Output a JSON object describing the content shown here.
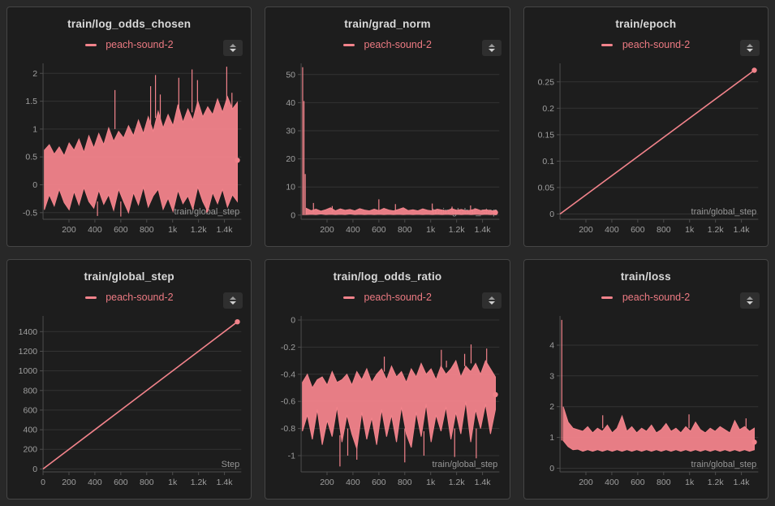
{
  "app": {
    "background": "#282828",
    "panel_bg": "#1d1d1d",
    "panel_border": "#454545",
    "accent": "#f2838b",
    "legend_color": "#ec7a82",
    "title_color": "#d9d9d9",
    "tick_color": "#9f9f9f",
    "grid_color": "#333333",
    "axis_color": "#4d4d4d",
    "stepper_icon": "up-down-arrows"
  },
  "chart_data": [
    {
      "type": "line",
      "title": "train/log_odds_chosen",
      "legend": "peach-sound-2",
      "xlabel": "train/global_step",
      "x_range": [
        0,
        1530
      ],
      "ylim": [
        -0.62,
        2.18
      ],
      "xticks": [
        [
          200,
          "200"
        ],
        [
          400,
          "400"
        ],
        [
          600,
          "600"
        ],
        [
          800,
          "800"
        ],
        [
          1000,
          "1k"
        ],
        [
          1200,
          "1.2k"
        ],
        [
          1400,
          "1.4k"
        ]
      ],
      "yticks": [
        [
          -0.5,
          "-0.5"
        ],
        [
          0,
          "0"
        ],
        [
          0.5,
          "0.5"
        ],
        [
          1,
          "1"
        ],
        [
          1.5,
          "1.5"
        ],
        [
          2,
          "2"
        ]
      ],
      "band": {
        "x0": 10,
        "x1": 1500,
        "lo_hi": [
          [
            -0.45,
            0.62
          ],
          [
            -0.18,
            0.72
          ],
          [
            -0.38,
            0.55
          ],
          [
            -0.08,
            0.68
          ],
          [
            -0.32,
            0.52
          ],
          [
            -0.45,
            0.75
          ],
          [
            -0.12,
            0.62
          ],
          [
            -0.36,
            0.82
          ],
          [
            -0.05,
            0.58
          ],
          [
            -0.3,
            0.88
          ],
          [
            -0.42,
            0.66
          ],
          [
            -0.1,
            0.92
          ],
          [
            -0.35,
            0.72
          ],
          [
            -0.18,
            1.02
          ],
          [
            -0.46,
            0.78
          ],
          [
            -0.08,
            0.96
          ],
          [
            -0.3,
            0.84
          ],
          [
            -0.5,
            1.06
          ],
          [
            -0.14,
            0.88
          ],
          [
            -0.36,
            1.16
          ],
          [
            -0.04,
            0.92
          ],
          [
            -0.4,
            1.22
          ],
          [
            -0.2,
            0.96
          ],
          [
            -0.08,
            1.32
          ],
          [
            -0.44,
            1.02
          ],
          [
            -0.24,
            1.26
          ],
          [
            -0.48,
            1.06
          ],
          [
            -0.1,
            1.44
          ],
          [
            -0.34,
            1.12
          ],
          [
            -0.2,
            1.36
          ],
          [
            -0.44,
            1.16
          ],
          [
            -0.04,
            1.5
          ],
          [
            -0.3,
            1.22
          ],
          [
            -0.48,
            1.4
          ],
          [
            -0.14,
            1.26
          ],
          [
            -0.34,
            1.54
          ],
          [
            -0.08,
            1.3
          ],
          [
            -0.4,
            1.58
          ],
          [
            -0.18,
            1.36
          ],
          [
            -0.3,
            1.48
          ]
        ]
      },
      "spikes": [
        [
          420,
          -0.3,
          -0.56
        ],
        [
          555,
          1.0,
          1.7
        ],
        [
          600,
          -0.3,
          -0.57
        ],
        [
          830,
          1.1,
          1.77
        ],
        [
          868,
          1.2,
          1.97
        ],
        [
          905,
          1.1,
          1.62
        ],
        [
          1048,
          1.2,
          1.92
        ],
        [
          1150,
          1.3,
          2.07
        ],
        [
          1192,
          1.3,
          1.88
        ],
        [
          1262,
          -0.3,
          -0.5
        ],
        [
          1418,
          1.4,
          2.12
        ],
        [
          1458,
          1.35,
          1.65
        ]
      ],
      "line": null,
      "end_dot": [
        1500,
        0.44
      ]
    },
    {
      "type": "line",
      "title": "train/grad_norm",
      "legend": "peach-sound-2",
      "xlabel": "train/global_step",
      "x_range": [
        0,
        1530
      ],
      "ylim": [
        -1.5,
        54
      ],
      "xticks": [
        [
          200,
          "200"
        ],
        [
          400,
          "400"
        ],
        [
          600,
          "600"
        ],
        [
          800,
          "800"
        ],
        [
          1000,
          "1k"
        ],
        [
          1200,
          "1.2k"
        ],
        [
          1400,
          "1.4k"
        ]
      ],
      "yticks": [
        [
          0,
          "0"
        ],
        [
          10,
          "10"
        ],
        [
          20,
          "20"
        ],
        [
          30,
          "30"
        ],
        [
          40,
          "40"
        ],
        [
          50,
          "50"
        ]
      ],
      "band": {
        "x0": 40,
        "x1": 1500,
        "lo_hi": [
          [
            0.2,
            2.4
          ],
          [
            0.3,
            1.6
          ],
          [
            0.2,
            2.1
          ],
          [
            0.4,
            1.4
          ],
          [
            0.2,
            1.9
          ],
          [
            0.3,
            2.6
          ],
          [
            0.2,
            1.5
          ],
          [
            0.3,
            2.2
          ],
          [
            0.2,
            1.7
          ],
          [
            0.4,
            2.0
          ],
          [
            0.2,
            1.5
          ],
          [
            0.3,
            2.3
          ],
          [
            0.2,
            1.8
          ],
          [
            0.3,
            1.5
          ],
          [
            0.2,
            2.1
          ],
          [
            0.3,
            1.6
          ],
          [
            0.2,
            2.4
          ],
          [
            0.3,
            1.8
          ],
          [
            0.2,
            1.5
          ],
          [
            0.3,
            2.0
          ],
          [
            0.2,
            2.6
          ],
          [
            0.3,
            1.6
          ],
          [
            0.2,
            1.9
          ],
          [
            0.3,
            1.5
          ],
          [
            0.2,
            2.2
          ],
          [
            0.3,
            1.7
          ],
          [
            0.2,
            1.5
          ],
          [
            0.3,
            2.1
          ],
          [
            0.2,
            1.8
          ],
          [
            0.3,
            1.5
          ],
          [
            0.2,
            2.3
          ],
          [
            0.3,
            1.7
          ],
          [
            0.2,
            2.0
          ],
          [
            0.3,
            1.5
          ],
          [
            0.2,
            1.8
          ],
          [
            0.3,
            2.2
          ],
          [
            0.2,
            1.6
          ],
          [
            0.3,
            1.9
          ],
          [
            0.2,
            1.6
          ],
          [
            0.3,
            1.4
          ]
        ]
      },
      "spikes": [
        [
          12,
          0,
          52.6
        ],
        [
          22,
          0,
          40.6
        ],
        [
          32,
          0,
          14.6
        ],
        [
          95,
          1,
          4.3
        ],
        [
          240,
          1,
          3.2
        ],
        [
          600,
          1,
          5.6
        ],
        [
          728,
          1,
          3.9
        ],
        [
          1012,
          1,
          4.1
        ],
        [
          1165,
          1,
          3.0
        ],
        [
          1308,
          1,
          3.4
        ]
      ],
      "line": null,
      "end_dot": [
        1500,
        0.9
      ]
    },
    {
      "type": "line",
      "title": "train/epoch",
      "legend": "peach-sound-2",
      "xlabel": "train/global_step",
      "x_range": [
        0,
        1530
      ],
      "ylim": [
        -0.01,
        0.285
      ],
      "xticks": [
        [
          200,
          "200"
        ],
        [
          400,
          "400"
        ],
        [
          600,
          "600"
        ],
        [
          800,
          "800"
        ],
        [
          1000,
          "1k"
        ],
        [
          1200,
          "1.2k"
        ],
        [
          1400,
          "1.4k"
        ]
      ],
      "yticks": [
        [
          0,
          "0"
        ],
        [
          0.05,
          "0.05"
        ],
        [
          0.1,
          "0.1"
        ],
        [
          0.15,
          "0.15"
        ],
        [
          0.2,
          "0.2"
        ],
        [
          0.25,
          "0.25"
        ]
      ],
      "band": null,
      "spikes": null,
      "line": [
        [
          0,
          0
        ],
        [
          1500,
          0.272
        ]
      ],
      "end_dot": [
        1500,
        0.272
      ]
    },
    {
      "type": "line",
      "title": "train/global_step",
      "legend": "peach-sound-2",
      "xlabel": "Step",
      "x_range": [
        0,
        1530
      ],
      "ylim": [
        -30,
        1560
      ],
      "xticks": [
        [
          0,
          "0"
        ],
        [
          200,
          "200"
        ],
        [
          400,
          "400"
        ],
        [
          600,
          "600"
        ],
        [
          800,
          "800"
        ],
        [
          1000,
          "1k"
        ],
        [
          1200,
          "1.2k"
        ],
        [
          1400,
          "1.4k"
        ]
      ],
      "yticks": [
        [
          0,
          "0"
        ],
        [
          200,
          "200"
        ],
        [
          400,
          "400"
        ],
        [
          600,
          "600"
        ],
        [
          800,
          "800"
        ],
        [
          1000,
          "1000"
        ],
        [
          1200,
          "1200"
        ],
        [
          1400,
          "1400"
        ]
      ],
      "band": null,
      "spikes": null,
      "line": [
        [
          0,
          0
        ],
        [
          1500,
          1500
        ]
      ],
      "end_dot": [
        1500,
        1500
      ]
    },
    {
      "type": "line",
      "title": "train/log_odds_ratio",
      "legend": "peach-sound-2",
      "xlabel": "train/global_step",
      "x_range": [
        0,
        1530
      ],
      "ylim": [
        -1.12,
        0.03
      ],
      "xticks": [
        [
          200,
          "200"
        ],
        [
          400,
          "400"
        ],
        [
          600,
          "600"
        ],
        [
          800,
          "800"
        ],
        [
          1000,
          "1k"
        ],
        [
          1200,
          "1.2k"
        ],
        [
          1400,
          "1.4k"
        ]
      ],
      "yticks": [
        [
          0,
          "0"
        ],
        [
          -0.2,
          "-0.2"
        ],
        [
          -0.4,
          "-0.4"
        ],
        [
          -0.6,
          "-0.6"
        ],
        [
          -0.8,
          "-0.8"
        ],
        [
          -1,
          "-1"
        ]
      ],
      "band": {
        "x0": 10,
        "x1": 1500,
        "lo_hi": [
          [
            -0.82,
            -0.46
          ],
          [
            -0.7,
            -0.4
          ],
          [
            -0.88,
            -0.5
          ],
          [
            -0.66,
            -0.44
          ],
          [
            -0.92,
            -0.42
          ],
          [
            -0.74,
            -0.48
          ],
          [
            -0.86,
            -0.38
          ],
          [
            -0.64,
            -0.46
          ],
          [
            -0.9,
            -0.44
          ],
          [
            -0.7,
            -0.4
          ],
          [
            -0.84,
            -0.48
          ],
          [
            -0.95,
            -0.38
          ],
          [
            -0.68,
            -0.44
          ],
          [
            -0.88,
            -0.36
          ],
          [
            -0.72,
            -0.46
          ],
          [
            -0.92,
            -0.4
          ],
          [
            -0.66,
            -0.36
          ],
          [
            -0.86,
            -0.44
          ],
          [
            -0.7,
            -0.34
          ],
          [
            -0.9,
            -0.42
          ],
          [
            -0.64,
            -0.38
          ],
          [
            -0.84,
            -0.46
          ],
          [
            -0.94,
            -0.36
          ],
          [
            -0.68,
            -0.42
          ],
          [
            -0.86,
            -0.32
          ],
          [
            -0.62,
            -0.4
          ],
          [
            -0.9,
            -0.36
          ],
          [
            -0.7,
            -0.44
          ],
          [
            -0.82,
            -0.34
          ],
          [
            -0.64,
            -0.4
          ],
          [
            -0.88,
            -0.36
          ],
          [
            -0.68,
            -0.3
          ],
          [
            -0.84,
            -0.42
          ],
          [
            -0.6,
            -0.34
          ],
          [
            -0.9,
            -0.38
          ],
          [
            -0.66,
            -0.32
          ],
          [
            -0.8,
            -0.4
          ],
          [
            -0.62,
            -0.3
          ],
          [
            -0.84,
            -0.36
          ],
          [
            -0.66,
            -0.42
          ]
        ]
      },
      "spikes": [
        [
          300,
          -0.85,
          -1.08
        ],
        [
          360,
          -0.8,
          -1.0
        ],
        [
          430,
          -0.85,
          -1.03
        ],
        [
          642,
          -0.38,
          -0.27
        ],
        [
          800,
          -0.8,
          -1.05
        ],
        [
          948,
          -0.82,
          -1.0
        ],
        [
          1082,
          -0.36,
          -0.22
        ],
        [
          1122,
          -0.35,
          -0.3
        ],
        [
          1185,
          -0.8,
          -1.01
        ],
        [
          1262,
          -0.34,
          -0.25
        ],
        [
          1312,
          -0.32,
          -0.18
        ],
        [
          1352,
          -0.8,
          -1.02
        ],
        [
          1432,
          -0.33,
          -0.21
        ]
      ],
      "line": null,
      "end_dot": [
        1500,
        -0.55
      ]
    },
    {
      "type": "line",
      "title": "train/loss",
      "legend": "peach-sound-2",
      "xlabel": "train/global_step",
      "x_range": [
        0,
        1530
      ],
      "ylim": [
        -0.12,
        4.95
      ],
      "xticks": [
        [
          200,
          "200"
        ],
        [
          400,
          "400"
        ],
        [
          600,
          "600"
        ],
        [
          800,
          "800"
        ],
        [
          1000,
          "1k"
        ],
        [
          1200,
          "1.2k"
        ],
        [
          1400,
          "1.4k"
        ]
      ],
      "yticks": [
        [
          0,
          "0"
        ],
        [
          1,
          "1"
        ],
        [
          2,
          "2"
        ],
        [
          3,
          "3"
        ],
        [
          4,
          "4"
        ]
      ],
      "band": {
        "x0": 25,
        "x1": 1500,
        "lo_hi": [
          [
            0.9,
            2.0
          ],
          [
            0.7,
            1.5
          ],
          [
            0.6,
            1.3
          ],
          [
            0.62,
            1.25
          ],
          [
            0.55,
            1.2
          ],
          [
            0.6,
            1.35
          ],
          [
            0.55,
            1.15
          ],
          [
            0.6,
            1.3
          ],
          [
            0.55,
            1.2
          ],
          [
            0.6,
            1.4
          ],
          [
            0.55,
            1.15
          ],
          [
            0.6,
            1.3
          ],
          [
            0.55,
            1.7
          ],
          [
            0.6,
            1.2
          ],
          [
            0.55,
            1.35
          ],
          [
            0.6,
            1.15
          ],
          [
            0.55,
            1.3
          ],
          [
            0.6,
            1.2
          ],
          [
            0.55,
            1.4
          ],
          [
            0.6,
            1.15
          ],
          [
            0.55,
            1.25
          ],
          [
            0.6,
            1.45
          ],
          [
            0.55,
            1.2
          ],
          [
            0.6,
            1.3
          ],
          [
            0.55,
            1.15
          ],
          [
            0.6,
            1.35
          ],
          [
            0.55,
            1.2
          ],
          [
            0.6,
            1.5
          ],
          [
            0.55,
            1.25
          ],
          [
            0.6,
            1.15
          ],
          [
            0.55,
            1.3
          ],
          [
            0.6,
            1.2
          ],
          [
            0.55,
            1.35
          ],
          [
            0.6,
            1.25
          ],
          [
            0.55,
            1.15
          ],
          [
            0.6,
            1.55
          ],
          [
            0.55,
            1.25
          ],
          [
            0.6,
            1.35
          ],
          [
            0.55,
            1.2
          ],
          [
            0.6,
            1.3
          ]
        ]
      },
      "spikes": [
        [
          14,
          0.9,
          4.82
        ],
        [
          330,
          1.3,
          1.72
        ],
        [
          996,
          1.3,
          1.75
        ],
        [
          1436,
          1.3,
          1.62
        ]
      ],
      "line": null,
      "end_dot": [
        1500,
        0.85
      ]
    }
  ]
}
